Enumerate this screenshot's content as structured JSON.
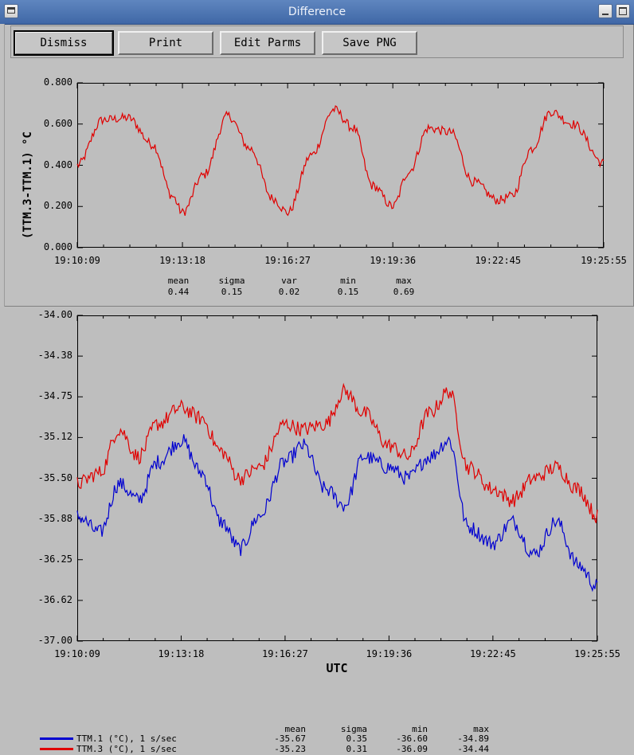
{
  "window": {
    "title": "Difference"
  },
  "toolbar": {
    "dismiss": "Dismiss",
    "print": "Print",
    "edit_parms": "Edit Parms",
    "save_png": "Save PNG"
  },
  "colors": {
    "series_red": "#e00000",
    "series_blue": "#0000d0",
    "background": "#bebebe"
  },
  "x_ticks": [
    "19:10:09",
    "19:13:18",
    "19:16:27",
    "19:19:36",
    "19:22:45",
    "19:25:55"
  ],
  "top_plot": {
    "y_label": "(TTM.3-TTM.1) °C",
    "y_ticks": [
      "0.800",
      "0.600",
      "0.400",
      "0.200",
      "0.000"
    ],
    "stats": {
      "headers": [
        "mean",
        "sigma",
        "var",
        "min",
        "max"
      ],
      "values": [
        "0.44",
        "0.15",
        "0.02",
        "0.15",
        "0.69"
      ]
    }
  },
  "bottom_plot": {
    "x_label": "UTC",
    "y_ticks": [
      "-34.00",
      "-34.38",
      "-34.75",
      "-35.12",
      "-35.50",
      "-35.88",
      "-36.25",
      "-36.62",
      "-37.00"
    ],
    "legend": {
      "headers": [
        "mean",
        "sigma",
        "min",
        "max"
      ],
      "rows": [
        {
          "label": "TTM.1 (°C), 1 s/sec",
          "color": "#0000d0",
          "values": [
            "-35.67",
            "0.35",
            "-36.60",
            "-34.89"
          ]
        },
        {
          "label": "TTM.3 (°C), 1 s/sec",
          "color": "#e00000",
          "values": [
            "-35.23",
            "0.31",
            "-36.09",
            "-34.44"
          ]
        }
      ]
    }
  },
  "chart_data": [
    {
      "type": "line",
      "xlabel": "",
      "ylabel": "(TTM.3-TTM.1) °C",
      "x": [
        "19:10:09",
        "19:10:55",
        "19:11:40",
        "19:12:25",
        "19:13:00",
        "19:13:18",
        "19:13:55",
        "19:14:40",
        "19:15:20",
        "19:16:00",
        "19:16:27",
        "19:17:10",
        "19:17:50",
        "19:18:25",
        "19:19:00",
        "19:19:36",
        "19:20:05",
        "19:20:40",
        "19:21:20",
        "19:22:00",
        "19:22:45",
        "19:23:10",
        "19:23:45",
        "19:24:20",
        "19:25:00",
        "19:25:55"
      ],
      "series": [
        {
          "name": "",
          "values": [
            0.4,
            0.62,
            0.63,
            0.5,
            0.25,
            0.17,
            0.35,
            0.64,
            0.48,
            0.24,
            0.17,
            0.45,
            0.67,
            0.58,
            0.3,
            0.2,
            0.37,
            0.58,
            0.56,
            0.32,
            0.23,
            0.25,
            0.48,
            0.66,
            0.6,
            0.41
          ]
        }
      ],
      "ylim": [
        0.0,
        0.8
      ],
      "grid": false
    },
    {
      "type": "line",
      "xlabel": "UTC",
      "ylabel": "",
      "x": [
        "19:10:09",
        "19:10:50",
        "19:11:25",
        "19:12:00",
        "19:12:35",
        "19:13:18",
        "19:13:55",
        "19:14:30",
        "19:15:05",
        "19:15:40",
        "19:16:27",
        "19:17:00",
        "19:17:40",
        "19:18:15",
        "19:18:50",
        "19:19:36",
        "19:20:10",
        "19:20:50",
        "19:21:25",
        "19:22:00",
        "19:22:45",
        "19:23:20",
        "19:24:00",
        "19:24:40",
        "19:25:20",
        "19:25:55"
      ],
      "series": [
        {
          "name": "TTM.1 (°C), 1 s/sec",
          "values": [
            -35.85,
            -36.0,
            -35.55,
            -35.7,
            -35.35,
            -35.15,
            -35.45,
            -35.9,
            -36.15,
            -35.85,
            -35.35,
            -35.2,
            -35.6,
            -35.75,
            -35.3,
            -35.4,
            -35.5,
            -35.3,
            -35.15,
            -35.95,
            -36.1,
            -35.9,
            -36.2,
            -35.9,
            -36.3,
            -36.5
          ]
        },
        {
          "name": "TTM.3 (°C), 1 s/sec",
          "values": [
            -35.55,
            -35.45,
            -35.05,
            -35.3,
            -35.0,
            -34.85,
            -34.95,
            -35.25,
            -35.5,
            -35.4,
            -35.0,
            -35.05,
            -35.0,
            -34.7,
            -34.9,
            -35.2,
            -35.3,
            -34.9,
            -34.7,
            -35.4,
            -35.6,
            -35.7,
            -35.5,
            -35.4,
            -35.6,
            -35.85
          ]
        }
      ],
      "ylim": [
        -37.0,
        -34.0
      ],
      "grid": false
    }
  ]
}
